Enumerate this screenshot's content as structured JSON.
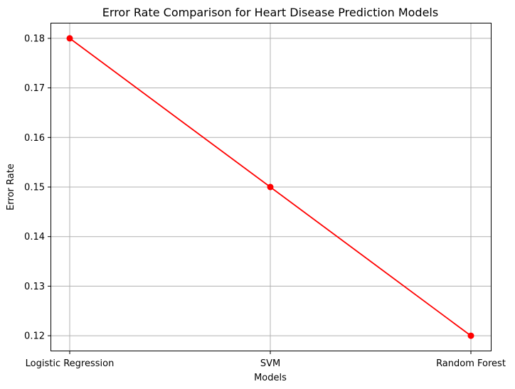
{
  "chart_data": {
    "type": "line",
    "title": "Error Rate Comparison for Heart Disease Prediction Models",
    "xlabel": "Models",
    "ylabel": "Error Rate",
    "categories": [
      "Logistic Regression",
      "SVM",
      "Random Forest"
    ],
    "series": [
      {
        "values": [
          0.18,
          0.15,
          0.12
        ],
        "color": "#ff0000",
        "marker": "circle"
      }
    ],
    "yticks": [
      0.12,
      0.13,
      0.14,
      0.15,
      0.16,
      0.17,
      0.18
    ],
    "ytick_labels": [
      "0.12",
      "0.13",
      "0.14",
      "0.15",
      "0.16",
      "0.17",
      "0.18"
    ],
    "ylim": [
      0.117,
      0.183
    ],
    "grid": true,
    "colors": {
      "line": "#ff0000",
      "grid": "#b0b0b0",
      "axis": "#000000"
    }
  }
}
